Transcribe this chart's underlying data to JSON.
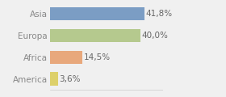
{
  "categories": [
    "America",
    "Africa",
    "Europa",
    "Asia"
  ],
  "values": [
    3.6,
    14.5,
    40.0,
    41.8
  ],
  "labels": [
    "3,6%",
    "14,5%",
    "40,0%",
    "41,8%"
  ],
  "bar_colors": [
    "#ddd06a",
    "#e8a87c",
    "#b5c98e",
    "#7b9dc4"
  ],
  "background_color": "#f0f0f0",
  "xlim": [
    0,
    50
  ],
  "bar_height": 0.62,
  "label_fontsize": 7.5,
  "tick_fontsize": 7.5,
  "tick_color": "#888888",
  "label_color": "#666666",
  "figsize": [
    2.8,
    1.2
  ],
  "dpi": 100
}
